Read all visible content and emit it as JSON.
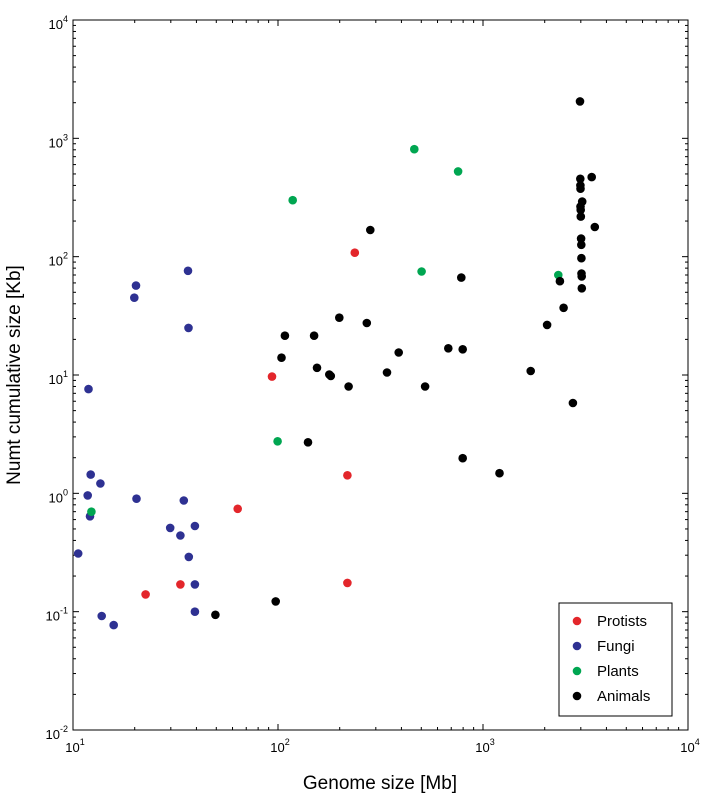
{
  "chart_data": {
    "type": "scatter",
    "title": "",
    "xlabel": "Genome size [Mb]",
    "ylabel": "Numt cumulative size [Kb]",
    "x_scale": "log",
    "y_scale": "log",
    "xlim": [
      10,
      10000
    ],
    "ylim": [
      0.01,
      10000
    ],
    "grid": false,
    "legend_position": "bottom-right",
    "x_ticks": [
      {
        "base": "10",
        "exp": "1"
      },
      {
        "base": "10",
        "exp": "2"
      },
      {
        "base": "10",
        "exp": "3"
      },
      {
        "base": "10",
        "exp": "4"
      }
    ],
    "y_ticks": [
      {
        "base": "10",
        "exp": "-2"
      },
      {
        "base": "10",
        "exp": "-1"
      },
      {
        "base": "10",
        "exp": "0"
      },
      {
        "base": "10",
        "exp": "1"
      },
      {
        "base": "10",
        "exp": "2"
      },
      {
        "base": "10",
        "exp": "3"
      },
      {
        "base": "10",
        "exp": "4"
      }
    ],
    "series": [
      {
        "name": "Protists",
        "color": "#e3262b",
        "points": [
          [
            22.6,
            0.14
          ],
          [
            33.4,
            0.17
          ],
          [
            63.6,
            0.74
          ],
          [
            93.5,
            9.7
          ],
          [
            218,
            1.42
          ],
          [
            218,
            0.175
          ],
          [
            237,
            108
          ]
        ]
      },
      {
        "name": "Fungi",
        "color": "#2e3192",
        "points": [
          [
            10.6,
            0.31
          ],
          [
            11.8,
            0.96
          ],
          [
            11.9,
            7.6
          ],
          [
            12.1,
            0.64
          ],
          [
            12.2,
            1.44
          ],
          [
            13.6,
            1.21
          ],
          [
            13.8,
            0.092
          ],
          [
            15.8,
            0.077
          ],
          [
            19.9,
            45
          ],
          [
            20.3,
            57
          ],
          [
            20.4,
            0.9
          ],
          [
            29.8,
            0.51
          ],
          [
            33.4,
            0.44
          ],
          [
            34.7,
            0.87
          ],
          [
            36.4,
            76
          ],
          [
            36.6,
            25
          ],
          [
            36.7,
            0.29
          ],
          [
            39.3,
            0.53
          ],
          [
            39.3,
            0.17
          ],
          [
            39.3,
            0.1
          ]
        ]
      },
      {
        "name": "Plants",
        "color": "#00a651",
        "points": [
          [
            12.3,
            0.7
          ],
          [
            99.5,
            2.75
          ],
          [
            118,
            300
          ],
          [
            462,
            810
          ],
          [
            502,
            75
          ],
          [
            756,
            525
          ],
          [
            2330,
            70
          ]
        ]
      },
      {
        "name": "Animals",
        "color": "#000000",
        "points": [
          [
            49.5,
            0.094
          ],
          [
            97.4,
            0.122
          ],
          [
            104,
            14
          ],
          [
            108,
            21.5
          ],
          [
            140,
            2.7
          ],
          [
            150,
            21.5
          ],
          [
            155,
            11.5
          ],
          [
            178,
            10.1
          ],
          [
            181,
            9.8
          ],
          [
            199,
            30.5
          ],
          [
            221,
            8.0
          ],
          [
            271,
            27.5
          ],
          [
            282,
            168
          ],
          [
            340,
            10.5
          ],
          [
            388,
            15.5
          ],
          [
            522,
            8.0
          ],
          [
            677,
            16.8
          ],
          [
            784,
            66.5
          ],
          [
            796,
            16.5
          ],
          [
            796,
            1.98
          ],
          [
            1204,
            1.48
          ],
          [
            1708,
            10.8
          ],
          [
            2055,
            26.5
          ],
          [
            2373,
            62
          ],
          [
            2473,
            37
          ],
          [
            2746,
            5.8
          ],
          [
            2974,
            2050
          ],
          [
            2982,
            455
          ],
          [
            2986,
            400
          ],
          [
            2988,
            375
          ],
          [
            2990,
            265
          ],
          [
            2995,
            248
          ],
          [
            3001,
            218
          ],
          [
            3010,
            142
          ],
          [
            3016,
            126
          ],
          [
            3020,
            97
          ],
          [
            3024,
            72
          ],
          [
            3030,
            68
          ],
          [
            3034,
            54
          ],
          [
            3047,
            292
          ],
          [
            3390,
            470
          ],
          [
            3510,
            178
          ]
        ]
      }
    ]
  }
}
